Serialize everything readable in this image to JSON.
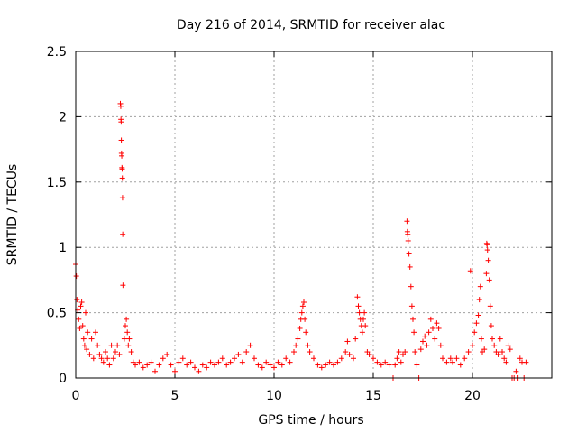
{
  "chart_data": {
    "type": "scatter",
    "title": "Day 216 of 2014, SRMTID for receiver alac",
    "xlabel": "GPS time / hours",
    "ylabel": "SRMTID / TECUs",
    "xlim": [
      0,
      24
    ],
    "ylim": [
      0,
      2.5
    ],
    "xticks": [
      "0",
      "5",
      "10",
      "15",
      "20"
    ],
    "xtick_values": [
      0,
      5,
      10,
      15,
      20
    ],
    "yticks": [
      "0",
      "0.5",
      "1",
      "1.5",
      "2",
      "2.5"
    ],
    "ytick_values": [
      0,
      0.5,
      1,
      1.5,
      2,
      2.5
    ],
    "grid": true,
    "marker": "+",
    "color": "#ff0000",
    "series": [
      {
        "name": "SRMTID",
        "points": [
          [
            0.0,
            0.87
          ],
          [
            0.03,
            0.78
          ],
          [
            0.06,
            0.6
          ],
          [
            0.1,
            0.52
          ],
          [
            0.15,
            0.45
          ],
          [
            0.2,
            0.38
          ],
          [
            0.25,
            0.55
          ],
          [
            0.3,
            0.58
          ],
          [
            0.35,
            0.4
          ],
          [
            0.4,
            0.3
          ],
          [
            0.45,
            0.25
          ],
          [
            0.5,
            0.5
          ],
          [
            0.55,
            0.22
          ],
          [
            0.6,
            0.35
          ],
          [
            0.7,
            0.18
          ],
          [
            0.8,
            0.3
          ],
          [
            0.9,
            0.15
          ],
          [
            1.0,
            0.35
          ],
          [
            1.1,
            0.25
          ],
          [
            1.2,
            0.18
          ],
          [
            1.3,
            0.15
          ],
          [
            1.4,
            0.12
          ],
          [
            1.5,
            0.2
          ],
          [
            1.6,
            0.15
          ],
          [
            1.7,
            0.1
          ],
          [
            1.8,
            0.25
          ],
          [
            1.9,
            0.15
          ],
          [
            2.0,
            0.2
          ],
          [
            2.1,
            0.25
          ],
          [
            2.2,
            0.18
          ],
          [
            2.25,
            2.1
          ],
          [
            2.27,
            2.08
          ],
          [
            2.28,
            1.98
          ],
          [
            2.29,
            1.96
          ],
          [
            2.3,
            1.82
          ],
          [
            2.31,
            1.72
          ],
          [
            2.32,
            1.7
          ],
          [
            2.33,
            1.61
          ],
          [
            2.34,
            1.6
          ],
          [
            2.35,
            1.53
          ],
          [
            2.36,
            1.38
          ],
          [
            2.37,
            1.1
          ],
          [
            2.38,
            0.71
          ],
          [
            2.45,
            0.3
          ],
          [
            2.5,
            0.4
          ],
          [
            2.55,
            0.45
          ],
          [
            2.6,
            0.35
          ],
          [
            2.65,
            0.25
          ],
          [
            2.7,
            0.3
          ],
          [
            2.8,
            0.2
          ],
          [
            2.9,
            0.12
          ],
          [
            3.0,
            0.1
          ],
          [
            3.2,
            0.12
          ],
          [
            3.4,
            0.08
          ],
          [
            3.6,
            0.1
          ],
          [
            3.8,
            0.12
          ],
          [
            4.0,
            0.05
          ],
          [
            4.2,
            0.1
          ],
          [
            4.4,
            0.15
          ],
          [
            4.6,
            0.18
          ],
          [
            4.8,
            0.1
          ],
          [
            5.0,
            0.05
          ],
          [
            5.2,
            0.12
          ],
          [
            5.4,
            0.15
          ],
          [
            5.6,
            0.1
          ],
          [
            5.8,
            0.12
          ],
          [
            6.0,
            0.08
          ],
          [
            6.2,
            0.05
          ],
          [
            6.4,
            0.1
          ],
          [
            6.6,
            0.08
          ],
          [
            6.8,
            0.12
          ],
          [
            7.0,
            0.1
          ],
          [
            7.2,
            0.12
          ],
          [
            7.4,
            0.15
          ],
          [
            7.6,
            0.1
          ],
          [
            7.8,
            0.12
          ],
          [
            8.0,
            0.15
          ],
          [
            8.2,
            0.18
          ],
          [
            8.4,
            0.12
          ],
          [
            8.6,
            0.2
          ],
          [
            8.8,
            0.25
          ],
          [
            9.0,
            0.15
          ],
          [
            9.2,
            0.1
          ],
          [
            9.4,
            0.08
          ],
          [
            9.6,
            0.12
          ],
          [
            9.8,
            0.1
          ],
          [
            10.0,
            0.08
          ],
          [
            10.2,
            0.12
          ],
          [
            10.4,
            0.1
          ],
          [
            10.6,
            0.15
          ],
          [
            10.8,
            0.12
          ],
          [
            11.0,
            0.2
          ],
          [
            11.1,
            0.25
          ],
          [
            11.2,
            0.3
          ],
          [
            11.3,
            0.38
          ],
          [
            11.35,
            0.45
          ],
          [
            11.4,
            0.5
          ],
          [
            11.45,
            0.55
          ],
          [
            11.5,
            0.58
          ],
          [
            11.55,
            0.45
          ],
          [
            11.6,
            0.35
          ],
          [
            11.7,
            0.25
          ],
          [
            11.8,
            0.2
          ],
          [
            12.0,
            0.15
          ],
          [
            12.2,
            0.1
          ],
          [
            12.4,
            0.08
          ],
          [
            12.6,
            0.1
          ],
          [
            12.8,
            0.12
          ],
          [
            13.0,
            0.1
          ],
          [
            13.2,
            0.12
          ],
          [
            13.4,
            0.15
          ],
          [
            13.6,
            0.2
          ],
          [
            13.7,
            0.28
          ],
          [
            13.8,
            0.18
          ],
          [
            14.0,
            0.15
          ],
          [
            14.1,
            0.3
          ],
          [
            14.2,
            0.62
          ],
          [
            14.25,
            0.55
          ],
          [
            14.3,
            0.5
          ],
          [
            14.35,
            0.45
          ],
          [
            14.4,
            0.4
          ],
          [
            14.45,
            0.35
          ],
          [
            14.5,
            0.45
          ],
          [
            14.55,
            0.5
          ],
          [
            14.6,
            0.4
          ],
          [
            14.7,
            0.2
          ],
          [
            14.8,
            0.18
          ],
          [
            15.0,
            0.15
          ],
          [
            15.2,
            0.12
          ],
          [
            15.4,
            0.1
          ],
          [
            15.6,
            0.12
          ],
          [
            15.8,
            0.1
          ],
          [
            16.0,
            0.0
          ],
          [
            16.1,
            0.1
          ],
          [
            16.2,
            0.15
          ],
          [
            16.3,
            0.2
          ],
          [
            16.4,
            0.12
          ],
          [
            16.5,
            0.18
          ],
          [
            16.6,
            0.2
          ],
          [
            16.7,
            1.2
          ],
          [
            16.72,
            1.12
          ],
          [
            16.74,
            1.1
          ],
          [
            16.76,
            1.05
          ],
          [
            16.8,
            0.95
          ],
          [
            16.85,
            0.85
          ],
          [
            16.9,
            0.7
          ],
          [
            16.95,
            0.55
          ],
          [
            17.0,
            0.45
          ],
          [
            17.05,
            0.35
          ],
          [
            17.1,
            0.2
          ],
          [
            17.2,
            0.1
          ],
          [
            17.3,
            0.0
          ],
          [
            17.4,
            0.22
          ],
          [
            17.5,
            0.28
          ],
          [
            17.6,
            0.32
          ],
          [
            17.7,
            0.25
          ],
          [
            17.8,
            0.35
          ],
          [
            17.9,
            0.45
          ],
          [
            18.0,
            0.38
          ],
          [
            18.1,
            0.3
          ],
          [
            18.2,
            0.42
          ],
          [
            18.3,
            0.38
          ],
          [
            18.4,
            0.25
          ],
          [
            18.5,
            0.15
          ],
          [
            18.7,
            0.12
          ],
          [
            18.9,
            0.15
          ],
          [
            19.0,
            0.12
          ],
          [
            19.2,
            0.15
          ],
          [
            19.4,
            0.1
          ],
          [
            19.6,
            0.15
          ],
          [
            19.8,
            0.2
          ],
          [
            19.9,
            0.82
          ],
          [
            20.0,
            0.25
          ],
          [
            20.1,
            0.35
          ],
          [
            20.2,
            0.42
          ],
          [
            20.3,
            0.48
          ],
          [
            20.35,
            0.6
          ],
          [
            20.4,
            0.7
          ],
          [
            20.45,
            0.3
          ],
          [
            20.5,
            0.2
          ],
          [
            20.6,
            0.22
          ],
          [
            20.7,
            0.8
          ],
          [
            20.72,
            1.03
          ],
          [
            20.74,
            1.02
          ],
          [
            20.76,
            0.98
          ],
          [
            20.8,
            0.9
          ],
          [
            20.85,
            0.75
          ],
          [
            20.9,
            0.55
          ],
          [
            20.95,
            0.4
          ],
          [
            21.0,
            0.3
          ],
          [
            21.1,
            0.25
          ],
          [
            21.2,
            0.2
          ],
          [
            21.3,
            0.18
          ],
          [
            21.4,
            0.3
          ],
          [
            21.5,
            0.2
          ],
          [
            21.6,
            0.15
          ],
          [
            21.7,
            0.12
          ],
          [
            21.8,
            0.25
          ],
          [
            21.9,
            0.22
          ],
          [
            22.0,
            0.0
          ],
          [
            22.1,
            0.0
          ],
          [
            22.2,
            0.05
          ],
          [
            22.3,
            0.0
          ],
          [
            22.4,
            0.15
          ],
          [
            22.5,
            0.12
          ],
          [
            22.6,
            0.0
          ],
          [
            22.7,
            0.12
          ]
        ]
      }
    ]
  }
}
